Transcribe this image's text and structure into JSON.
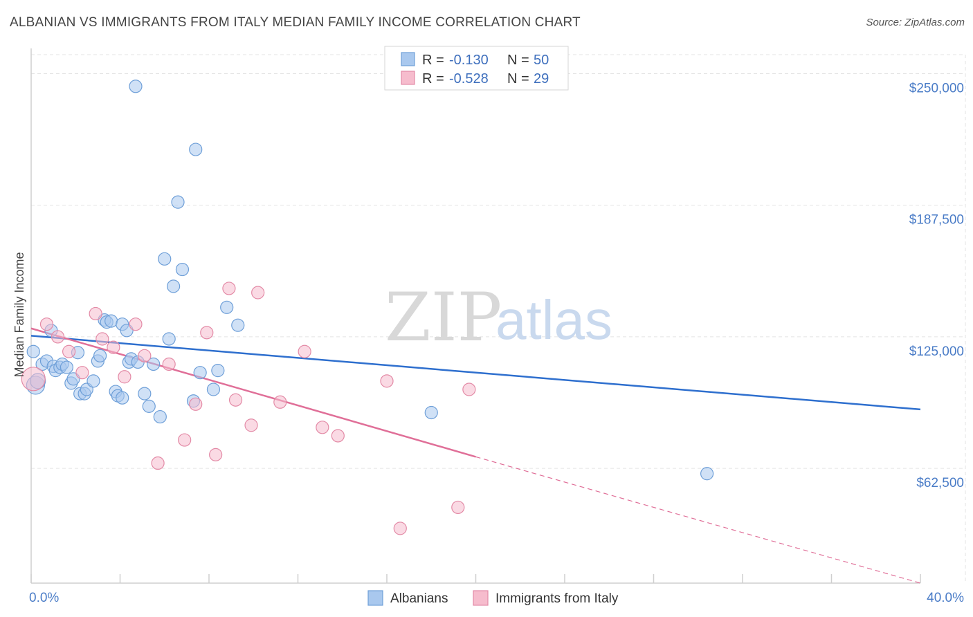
{
  "header": {
    "title": "ALBANIAN VS IMMIGRANTS FROM ITALY MEDIAN FAMILY INCOME CORRELATION CHART",
    "source": "Source: ZipAtlas.com"
  },
  "watermark": {
    "zip": "ZIP",
    "atlas": "atlas"
  },
  "colors": {
    "blue_fill": "#a9c8ee",
    "blue_stroke": "#6e9fd8",
    "blue_line": "#2e6fce",
    "pink_fill": "#f6bccd",
    "pink_stroke": "#e38aa6",
    "pink_line": "#e06f98",
    "grid": "#e3e3e3",
    "axis_text": "#4a7cc7"
  },
  "legend_top": {
    "rows": [
      {
        "r_label": "R =",
        "r_value": "-0.130",
        "n_label": "N =",
        "n_value": "50",
        "color": "blue"
      },
      {
        "r_label": "R =",
        "r_value": "-0.528",
        "n_label": "N =",
        "n_value": "29",
        "color": "pink"
      }
    ]
  },
  "legend_bottom": {
    "items": [
      {
        "label": "Albanians",
        "color": "blue"
      },
      {
        "label": "Immigrants from Italy",
        "color": "pink"
      }
    ]
  },
  "chart_data": {
    "type": "scatter",
    "title": "ALBANIAN VS IMMIGRANTS FROM ITALY MEDIAN FAMILY INCOME CORRELATION CHART",
    "xlabel": "",
    "ylabel": "Median Family Income",
    "xlim": [
      0,
      40
    ],
    "ylim": [
      8000,
      262000
    ],
    "x_tick_labels": [
      {
        "value": 0,
        "label": "0.0%"
      },
      {
        "value": 40,
        "label": "40.0%"
      }
    ],
    "x_minor_ticks": [
      0,
      4,
      8,
      12,
      16,
      20,
      24,
      28,
      32,
      36,
      40
    ],
    "y_ticks": [
      {
        "value": 250000,
        "label": "$250,000"
      },
      {
        "value": 187500,
        "label": "$187,500"
      },
      {
        "value": 125000,
        "label": "$125,000"
      },
      {
        "value": 62500,
        "label": "$62,500"
      }
    ],
    "grid": true,
    "legend_placement": "top-center",
    "series": [
      {
        "name": "Albanians",
        "color": "blue",
        "trend": {
          "x": [
            0,
            40
          ],
          "y": [
            125500,
            90500
          ],
          "dashed_extension": false
        },
        "points": [
          [
            0.2,
            102000,
            13
          ],
          [
            0.3,
            104000,
            11
          ],
          [
            0.5,
            112000,
            9
          ],
          [
            0.7,
            113500,
            9
          ],
          [
            0.9,
            128000,
            9
          ],
          [
            1.0,
            111000,
            9
          ],
          [
            1.1,
            109000,
            9
          ],
          [
            1.3,
            110500,
            9
          ],
          [
            1.4,
            112000,
            9
          ],
          [
            1.6,
            110500,
            9
          ],
          [
            1.8,
            103000,
            9
          ],
          [
            1.9,
            105000,
            9
          ],
          [
            2.1,
            117500,
            9
          ],
          [
            2.2,
            98000,
            9
          ],
          [
            2.4,
            98000,
            9
          ],
          [
            2.5,
            100000,
            9
          ],
          [
            2.8,
            104000,
            9
          ],
          [
            3.0,
            113500,
            9
          ],
          [
            3.1,
            116000,
            9
          ],
          [
            3.3,
            133000,
            9
          ],
          [
            3.4,
            132000,
            9
          ],
          [
            3.6,
            132500,
            9
          ],
          [
            3.8,
            99000,
            9
          ],
          [
            3.9,
            97000,
            9
          ],
          [
            4.1,
            96000,
            9
          ],
          [
            4.1,
            131000,
            9
          ],
          [
            4.3,
            128000,
            9
          ],
          [
            4.4,
            113000,
            9
          ],
          [
            4.5,
            114500,
            9
          ],
          [
            4.7,
            244000,
            9
          ],
          [
            4.8,
            113000,
            9
          ],
          [
            5.1,
            98000,
            9
          ],
          [
            5.3,
            92000,
            9
          ],
          [
            5.5,
            112000,
            9
          ],
          [
            5.8,
            87000,
            9
          ],
          [
            6.0,
            162000,
            9
          ],
          [
            6.2,
            124000,
            9
          ],
          [
            6.4,
            149000,
            9
          ],
          [
            6.6,
            189000,
            9
          ],
          [
            6.8,
            157000,
            9
          ],
          [
            7.3,
            94500,
            9
          ],
          [
            7.4,
            214000,
            9
          ],
          [
            7.6,
            108000,
            9
          ],
          [
            8.2,
            100000,
            9
          ],
          [
            8.4,
            109000,
            9
          ],
          [
            8.8,
            139000,
            9
          ],
          [
            9.3,
            130500,
            9
          ],
          [
            18.0,
            89000,
            9
          ],
          [
            30.4,
            60000,
            9
          ],
          [
            0.1,
            118000,
            9
          ]
        ]
      },
      {
        "name": "Immigrants from Italy",
        "color": "pink",
        "trend": {
          "x": [
            0,
            20
          ],
          "y": [
            129000,
            68000
          ],
          "dashed_to": [
            40,
            8000
          ]
        },
        "points": [
          [
            0.1,
            105000,
            17
          ],
          [
            0.7,
            131000,
            9
          ],
          [
            1.2,
            125000,
            9
          ],
          [
            1.7,
            118000,
            9
          ],
          [
            2.3,
            108000,
            9
          ],
          [
            2.9,
            136000,
            9
          ],
          [
            3.2,
            124000,
            9
          ],
          [
            3.7,
            120000,
            9
          ],
          [
            4.2,
            106000,
            9
          ],
          [
            4.7,
            131000,
            9
          ],
          [
            5.1,
            116000,
            9
          ],
          [
            5.7,
            65000,
            9
          ],
          [
            6.2,
            112000,
            9
          ],
          [
            6.9,
            76000,
            9
          ],
          [
            7.4,
            93000,
            9
          ],
          [
            7.9,
            127000,
            9
          ],
          [
            8.3,
            69000,
            9
          ],
          [
            8.9,
            148000,
            9
          ],
          [
            9.2,
            95000,
            9
          ],
          [
            9.9,
            83000,
            9
          ],
          [
            10.2,
            146000,
            9
          ],
          [
            11.2,
            94000,
            9
          ],
          [
            12.3,
            118000,
            9
          ],
          [
            13.1,
            82000,
            9
          ],
          [
            13.8,
            78000,
            9
          ],
          [
            16.0,
            104000,
            9
          ],
          [
            16.6,
            34000,
            9
          ],
          [
            19.2,
            44000,
            9
          ],
          [
            19.7,
            100000,
            9
          ]
        ]
      }
    ]
  }
}
